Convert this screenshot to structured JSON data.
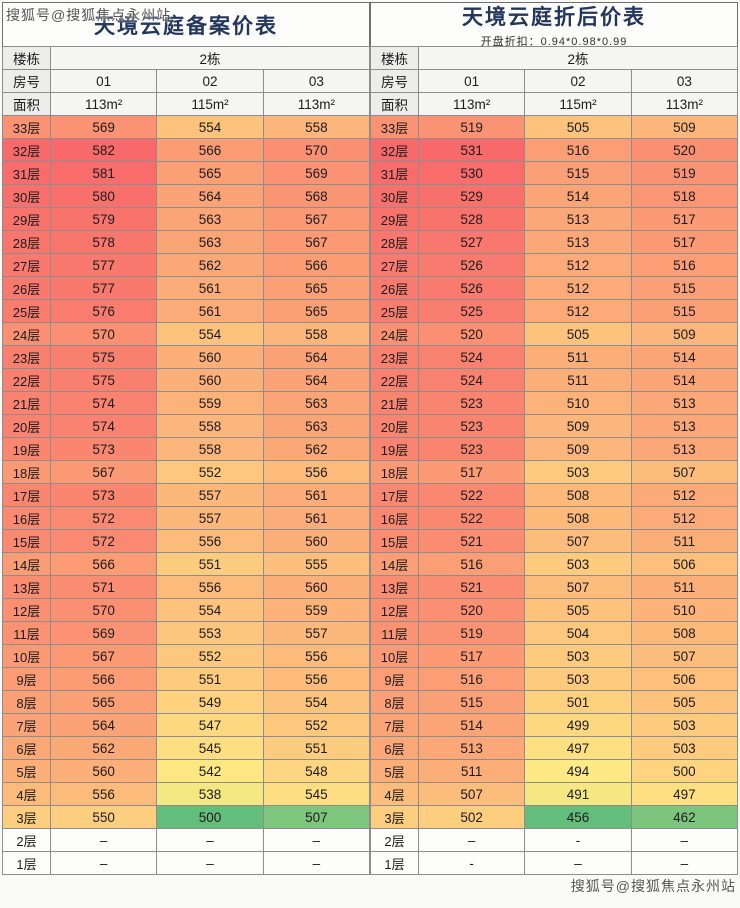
{
  "watermark": {
    "text": "搜狐号@搜狐焦点永州站"
  },
  "chart_data": [
    {
      "type": "heatmap",
      "title": "天境云庭备案价表",
      "subtitle": "",
      "legend_note": "red=high price, yellow=mid, green=low; per-table color scale",
      "header": {
        "building_label": "楼栋",
        "building_value": "2栋",
        "room_label": "房号",
        "rooms": [
          "01",
          "02",
          "03"
        ],
        "area_label": "面积",
        "areas": [
          "113m²",
          "115m²",
          "113m²"
        ]
      },
      "scale": {
        "min": 500,
        "max": 582,
        "min_color": "#63BE7B",
        "mid_color": "#FFEB84",
        "max_color": "#F8696B"
      },
      "rows": [
        {
          "floor": "33层",
          "values": [
            "569",
            "554",
            "558"
          ]
        },
        {
          "floor": "32层",
          "values": [
            "582",
            "566",
            "570"
          ]
        },
        {
          "floor": "31层",
          "values": [
            "581",
            "565",
            "569"
          ]
        },
        {
          "floor": "30层",
          "values": [
            "580",
            "564",
            "568"
          ]
        },
        {
          "floor": "29层",
          "values": [
            "579",
            "563",
            "567"
          ]
        },
        {
          "floor": "28层",
          "values": [
            "578",
            "563",
            "567"
          ]
        },
        {
          "floor": "27层",
          "values": [
            "577",
            "562",
            "566"
          ]
        },
        {
          "floor": "26层",
          "values": [
            "577",
            "561",
            "565"
          ]
        },
        {
          "floor": "25层",
          "values": [
            "576",
            "561",
            "565"
          ]
        },
        {
          "floor": "24层",
          "values": [
            "570",
            "554",
            "558"
          ]
        },
        {
          "floor": "23层",
          "values": [
            "575",
            "560",
            "564"
          ]
        },
        {
          "floor": "22层",
          "values": [
            "575",
            "560",
            "564"
          ]
        },
        {
          "floor": "21层",
          "values": [
            "574",
            "559",
            "563"
          ]
        },
        {
          "floor": "20层",
          "values": [
            "574",
            "558",
            "563"
          ]
        },
        {
          "floor": "19层",
          "values": [
            "573",
            "558",
            "562"
          ]
        },
        {
          "floor": "18层",
          "values": [
            "567",
            "552",
            "556"
          ]
        },
        {
          "floor": "17层",
          "values": [
            "573",
            "557",
            "561"
          ]
        },
        {
          "floor": "16层",
          "values": [
            "572",
            "557",
            "561"
          ]
        },
        {
          "floor": "15层",
          "values": [
            "572",
            "556",
            "560"
          ]
        },
        {
          "floor": "14层",
          "values": [
            "566",
            "551",
            "555"
          ]
        },
        {
          "floor": "13层",
          "values": [
            "571",
            "556",
            "560"
          ]
        },
        {
          "floor": "12层",
          "values": [
            "570",
            "554",
            "559"
          ]
        },
        {
          "floor": "11层",
          "values": [
            "569",
            "553",
            "557"
          ]
        },
        {
          "floor": "10层",
          "values": [
            "567",
            "552",
            "556"
          ]
        },
        {
          "floor": "9层",
          "values": [
            "566",
            "551",
            "556"
          ]
        },
        {
          "floor": "8层",
          "values": [
            "565",
            "549",
            "554"
          ]
        },
        {
          "floor": "7层",
          "values": [
            "564",
            "547",
            "552"
          ]
        },
        {
          "floor": "6层",
          "values": [
            "562",
            "545",
            "551"
          ]
        },
        {
          "floor": "5层",
          "values": [
            "560",
            "542",
            "548"
          ]
        },
        {
          "floor": "4层",
          "values": [
            "556",
            "538",
            "545"
          ]
        },
        {
          "floor": "3层",
          "values": [
            "550",
            "500",
            "507"
          ]
        },
        {
          "floor": "2层",
          "values": [
            "–",
            "–",
            "–"
          ]
        },
        {
          "floor": "1层",
          "values": [
            "–",
            "–",
            "–"
          ]
        }
      ]
    },
    {
      "type": "heatmap",
      "title": "天境云庭折后价表",
      "subtitle": "开盘折扣：0.94*0.98*0.99",
      "legend_note": "red=high price, yellow=mid, green=low; per-table color scale",
      "header": {
        "building_label": "楼栋",
        "building_value": "2栋",
        "room_label": "房号",
        "rooms": [
          "01",
          "02",
          "03"
        ],
        "area_label": "面积",
        "areas": [
          "113m²",
          "115m²",
          "113m²"
        ]
      },
      "scale": {
        "min": 456,
        "max": 531,
        "min_color": "#63BE7B",
        "mid_color": "#FFEB84",
        "max_color": "#F8696B"
      },
      "rows": [
        {
          "floor": "33层",
          "values": [
            "519",
            "505",
            "509"
          ]
        },
        {
          "floor": "32层",
          "values": [
            "531",
            "516",
            "520"
          ]
        },
        {
          "floor": "31层",
          "values": [
            "530",
            "515",
            "519"
          ]
        },
        {
          "floor": "30层",
          "values": [
            "529",
            "514",
            "518"
          ]
        },
        {
          "floor": "29层",
          "values": [
            "528",
            "513",
            "517"
          ]
        },
        {
          "floor": "28层",
          "values": [
            "527",
            "513",
            "517"
          ]
        },
        {
          "floor": "27层",
          "values": [
            "526",
            "512",
            "516"
          ]
        },
        {
          "floor": "26层",
          "values": [
            "526",
            "512",
            "515"
          ]
        },
        {
          "floor": "25层",
          "values": [
            "525",
            "512",
            "515"
          ]
        },
        {
          "floor": "24层",
          "values": [
            "520",
            "505",
            "509"
          ]
        },
        {
          "floor": "23层",
          "values": [
            "524",
            "511",
            "514"
          ]
        },
        {
          "floor": "22层",
          "values": [
            "524",
            "511",
            "514"
          ]
        },
        {
          "floor": "21层",
          "values": [
            "523",
            "510",
            "513"
          ]
        },
        {
          "floor": "20层",
          "values": [
            "523",
            "509",
            "513"
          ]
        },
        {
          "floor": "19层",
          "values": [
            "523",
            "509",
            "513"
          ]
        },
        {
          "floor": "18层",
          "values": [
            "517",
            "503",
            "507"
          ]
        },
        {
          "floor": "17层",
          "values": [
            "522",
            "508",
            "512"
          ]
        },
        {
          "floor": "16层",
          "values": [
            "522",
            "508",
            "512"
          ]
        },
        {
          "floor": "15层",
          "values": [
            "521",
            "507",
            "511"
          ]
        },
        {
          "floor": "14层",
          "values": [
            "516",
            "503",
            "506"
          ]
        },
        {
          "floor": "13层",
          "values": [
            "521",
            "507",
            "511"
          ]
        },
        {
          "floor": "12层",
          "values": [
            "520",
            "505",
            "510"
          ]
        },
        {
          "floor": "11层",
          "values": [
            "519",
            "504",
            "508"
          ]
        },
        {
          "floor": "10层",
          "values": [
            "517",
            "503",
            "507"
          ]
        },
        {
          "floor": "9层",
          "values": [
            "516",
            "503",
            "506"
          ]
        },
        {
          "floor": "8层",
          "values": [
            "515",
            "501",
            "505"
          ]
        },
        {
          "floor": "7层",
          "values": [
            "514",
            "499",
            "503"
          ]
        },
        {
          "floor": "6层",
          "values": [
            "513",
            "497",
            "503"
          ]
        },
        {
          "floor": "5层",
          "values": [
            "511",
            "494",
            "500"
          ]
        },
        {
          "floor": "4层",
          "values": [
            "507",
            "491",
            "497"
          ]
        },
        {
          "floor": "3层",
          "values": [
            "502",
            "456",
            "462"
          ]
        },
        {
          "floor": "2层",
          "values": [
            "–",
            "-",
            "–"
          ]
        },
        {
          "floor": "1层",
          "values": [
            "-",
            "–",
            "–"
          ]
        }
      ]
    }
  ]
}
